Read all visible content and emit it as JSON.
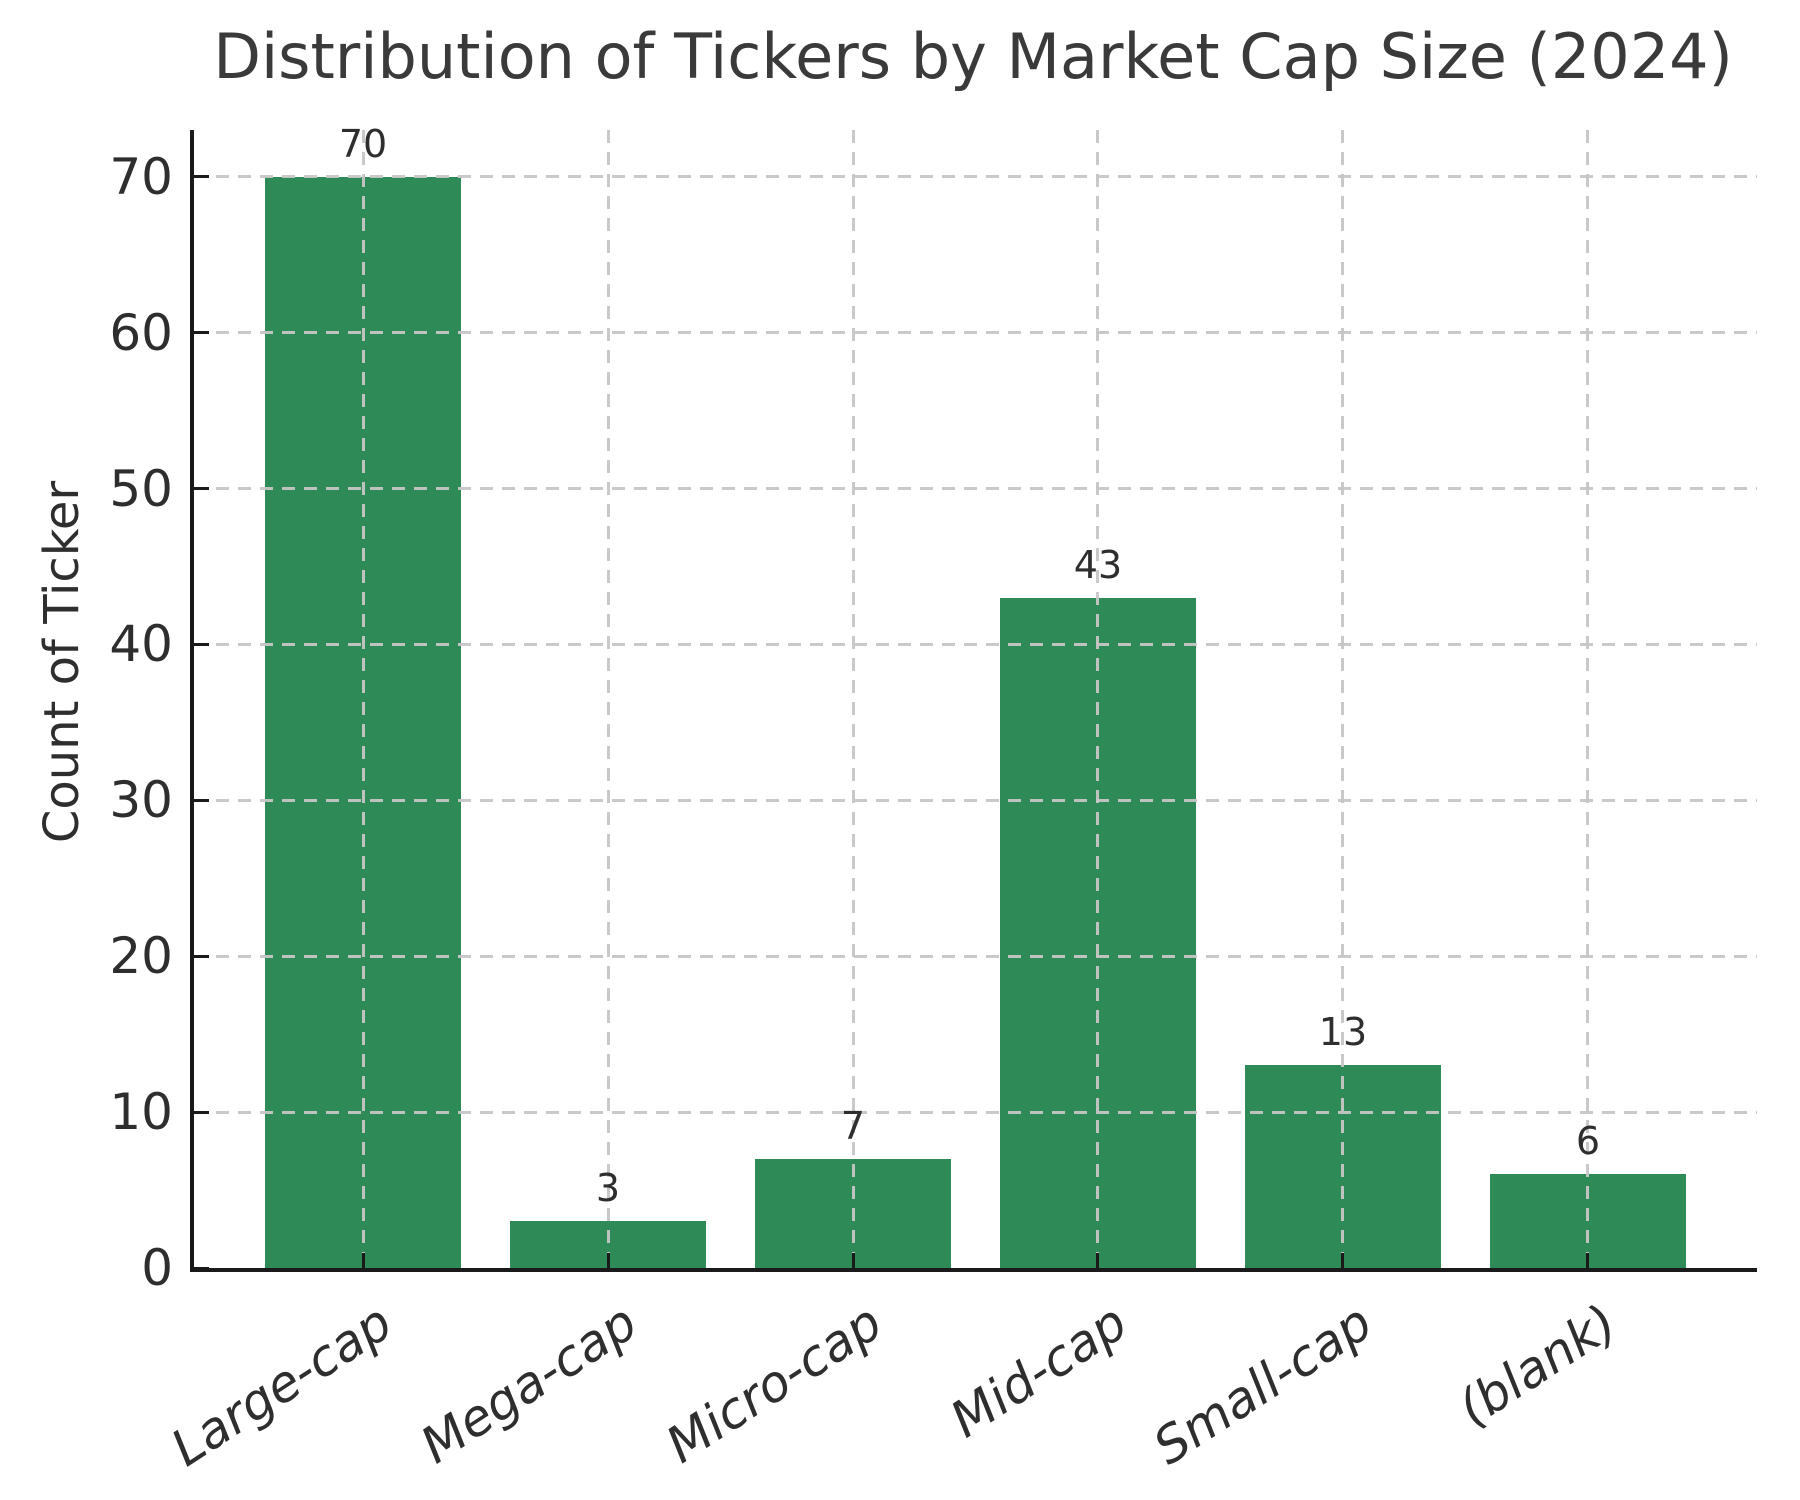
{
  "chart_data": {
    "type": "bar",
    "title": "Distribution of Tickers by Market Cap Size (2024)",
    "ylabel": "Count of Ticker",
    "xlabel": "",
    "categories": [
      "Large-cap",
      "Mega-cap",
      "Micro-cap",
      "Mid-cap",
      "Small-cap",
      "(blank)"
    ],
    "values": [
      70,
      3,
      7,
      43,
      13,
      6
    ],
    "bar_value_labels": [
      "70",
      "3",
      "7",
      "43",
      "13",
      "6"
    ],
    "yticks": [
      0,
      10,
      20,
      30,
      40,
      50,
      60,
      70
    ],
    "ylim": [
      0,
      73
    ],
    "legend": "none",
    "grid": "dashed gray gridlines on both axes, drawn over the bars",
    "colors": {
      "bar": "#2e8b57",
      "grid": "#c6c6c6",
      "axis": "#1a1a1a",
      "title_text": "#3a3a3a",
      "tick_text": "#2e2e2e"
    }
  }
}
